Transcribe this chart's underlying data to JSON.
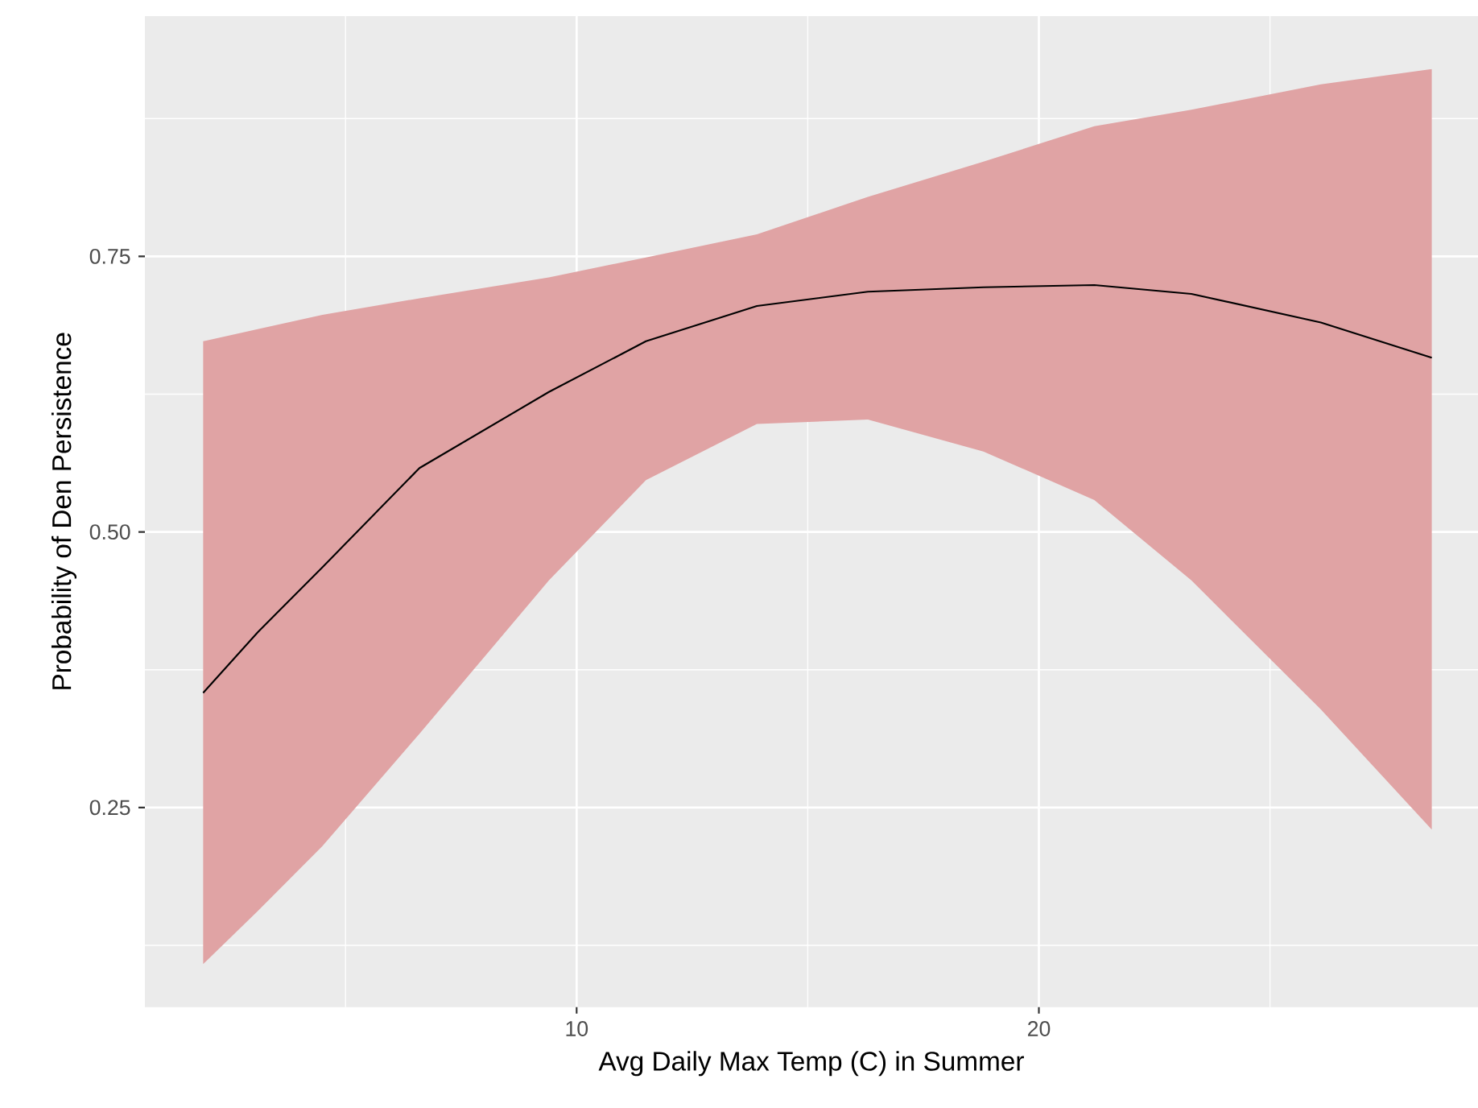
{
  "chart_data": {
    "type": "line",
    "xlabel": "Avg Daily Max Temp (C) in Summer",
    "ylabel": "Probability of Den Persistence",
    "x": [
      1.92,
      3.1,
      4.5,
      6.6,
      9.4,
      11.5,
      13.9,
      16.3,
      18.8,
      21.2,
      23.3,
      26.1,
      28.5
    ],
    "series": [
      {
        "color": "#000000",
        "values": [
          0.354,
          0.409,
          0.468,
          0.558,
          0.627,
          0.673,
          0.705,
          0.718,
          0.722,
          0.724,
          0.716,
          0.69,
          0.658
        ],
        "upper": [
          0.673,
          0.684,
          0.697,
          0.712,
          0.731,
          0.749,
          0.77,
          0.804,
          0.836,
          0.868,
          0.883,
          0.906,
          0.92
        ],
        "lower": [
          0.108,
          0.156,
          0.215,
          0.317,
          0.456,
          0.547,
          0.598,
          0.602,
          0.573,
          0.529,
          0.456,
          0.339,
          0.23
        ]
      }
    ],
    "xlim": [
      0.66,
      29.5
    ],
    "ylim": [
      0.069,
      0.968
    ],
    "xticks": [
      {
        "value": 5,
        "label": null
      },
      10,
      {
        "value": 15,
        "label": null
      },
      20,
      {
        "value": 25,
        "label": null
      }
    ],
    "yticks": [
      {
        "value": 0.125,
        "label": null
      },
      {
        "value": 0.25,
        "label": "0.25"
      },
      {
        "value": 0.375,
        "label": null
      },
      {
        "value": 0.5,
        "label": "0.50"
      },
      {
        "value": 0.625,
        "label": null
      },
      {
        "value": 0.75,
        "label": "0.75"
      },
      {
        "value": 0.875,
        "label": null
      }
    ],
    "grid": true,
    "marker": "none",
    "line_style": "solid"
  }
}
